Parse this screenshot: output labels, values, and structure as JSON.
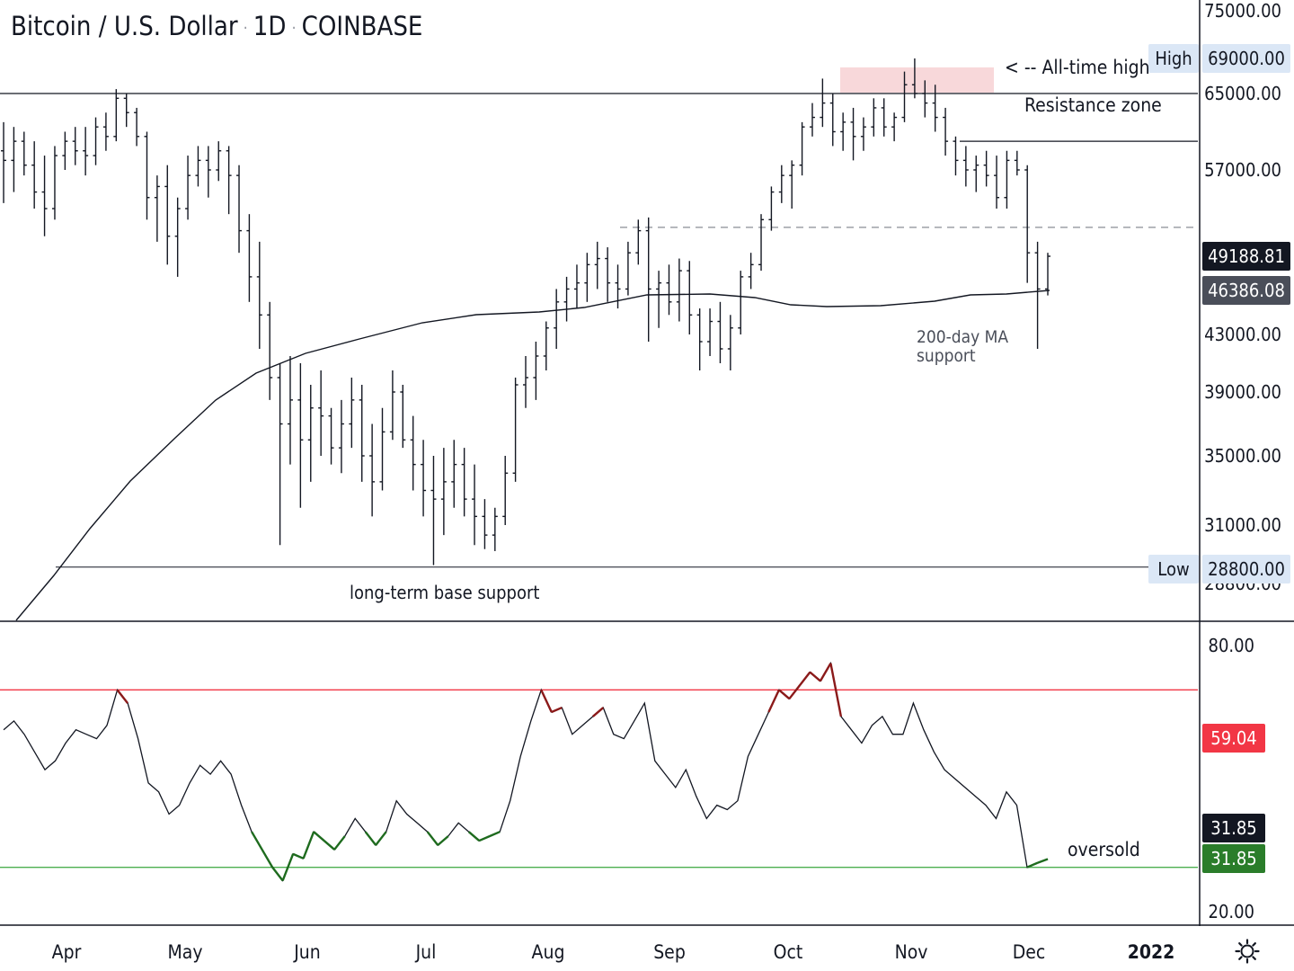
{
  "header": {
    "symbol": "Bitcoin / U.S. Dollar",
    "interval": "1D",
    "exchange": "COINBASE",
    "separator": "·"
  },
  "chart_data": [
    {
      "type": "ohlc-bar",
      "title": "Bitcoin / U.S. Dollar · 1D · COINBASE",
      "price_axis": {
        "ticks": [
          "75000.00",
          "65000.00",
          "57000.00",
          "43000.00",
          "39000.00",
          "35000.00",
          "31000.00"
        ],
        "partial_tick": "28800.00"
      },
      "time_axis": [
        "Apr",
        "May",
        "Jun",
        "Jul",
        "Aug",
        "Sep",
        "Oct",
        "Nov",
        "Dec",
        "2022"
      ],
      "price_labels": [
        {
          "label": "High",
          "value": "69000.00",
          "color": "#dbe7f6"
        },
        {
          "label": "",
          "value": "49188.81",
          "color": "#131722"
        },
        {
          "label": "",
          "value": "46386.08",
          "color": "#4a4e59"
        },
        {
          "label": "Low",
          "value": "28800.00",
          "color": "#dbe7f6"
        }
      ],
      "annotations": {
        "ath": "< -- All-time high",
        "resistance": "Resistance zone",
        "ma_support_line1": "200-day MA",
        "ma_support_line2": "support",
        "base_support": "long-term base support"
      },
      "horizontal_levels": [
        {
          "price": 65000,
          "style": "solid",
          "note": "resistance"
        },
        {
          "price": 60000,
          "style": "solid",
          "note": "short resistance"
        },
        {
          "price": 51800,
          "style": "dashed"
        },
        {
          "price": 28900,
          "style": "solid",
          "note": "base support"
        }
      ],
      "ohlc_approx": [
        [
          59000,
          62000,
          54000,
          58000
        ],
        [
          58000,
          61500,
          55000,
          60000
        ],
        [
          60000,
          61000,
          56500,
          57500
        ],
        [
          57500,
          60000,
          53500,
          55000
        ],
        [
          55000,
          58500,
          51000,
          53500
        ],
        [
          53500,
          59500,
          52500,
          58500
        ],
        [
          58500,
          61000,
          57000,
          60000
        ],
        [
          60000,
          61500,
          57500,
          59000
        ],
        [
          59000,
          61500,
          56500,
          58500
        ],
        [
          58500,
          62500,
          57500,
          61500
        ],
        [
          61500,
          63000,
          59000,
          60500
        ],
        [
          60500,
          65500,
          60000,
          64500
        ],
        [
          64500,
          65000,
          61500,
          63000
        ],
        [
          63000,
          63500,
          59500,
          60500
        ],
        [
          60500,
          61000,
          52500,
          54500
        ],
        [
          54500,
          56500,
          50500,
          55500
        ],
        [
          55500,
          57500,
          48500,
          51000
        ],
        [
          51000,
          54500,
          47500,
          53500
        ],
        [
          53500,
          58500,
          52500,
          56500
        ],
        [
          56500,
          59500,
          55500,
          58000
        ],
        [
          58000,
          59500,
          54500,
          57000
        ],
        [
          57000,
          60000,
          56000,
          59000
        ],
        [
          59000,
          59500,
          53000,
          56500
        ],
        [
          56500,
          57500,
          49500,
          51500
        ],
        [
          51500,
          53000,
          45500,
          47500
        ],
        [
          47500,
          50500,
          42000,
          44500
        ],
        [
          44500,
          45500,
          38500,
          40000
        ],
        [
          40000,
          41000,
          30000,
          37000
        ],
        [
          37000,
          41500,
          34500,
          38500
        ],
        [
          38500,
          41000,
          32000,
          36000
        ],
        [
          36000,
          39500,
          33500,
          38000
        ],
        [
          38000,
          40500,
          35000,
          37500
        ],
        [
          37500,
          38000,
          34500,
          35500
        ],
        [
          35500,
          38500,
          34000,
          37000
        ],
        [
          37000,
          40000,
          35500,
          38500
        ],
        [
          38500,
          39500,
          33500,
          35000
        ],
        [
          35000,
          37000,
          31500,
          33500
        ],
        [
          33500,
          38000,
          33000,
          36500
        ],
        [
          36500,
          40500,
          36000,
          39000
        ],
        [
          39000,
          39500,
          35500,
          36000
        ],
        [
          36000,
          37500,
          33000,
          34500
        ],
        [
          34500,
          36000,
          31500,
          33000
        ],
        [
          33000,
          35000,
          29000,
          32500
        ],
        [
          32500,
          35500,
          30500,
          33500
        ],
        [
          33500,
          36000,
          32000,
          34500
        ],
        [
          34500,
          35500,
          31500,
          32500
        ],
        [
          32500,
          34500,
          30000,
          31500
        ],
        [
          31500,
          32500,
          29800,
          30500
        ],
        [
          30500,
          32000,
          29700,
          31500
        ],
        [
          31500,
          35000,
          31000,
          34000
        ],
        [
          34000,
          40000,
          33500,
          39500
        ],
        [
          39500,
          41500,
          38000,
          40000
        ],
        [
          40000,
          42500,
          38500,
          41500
        ],
        [
          41500,
          44000,
          40500,
          43500
        ],
        [
          43500,
          46500,
          42000,
          45500
        ],
        [
          45500,
          47500,
          44000,
          46500
        ],
        [
          46500,
          48500,
          45000,
          47000
        ],
        [
          47000,
          49500,
          45500,
          48500
        ],
        [
          48500,
          50500,
          46500,
          49000
        ],
        [
          49000,
          50000,
          45500,
          47000
        ],
        [
          47000,
          48500,
          45000,
          46500
        ],
        [
          46500,
          50500,
          46000,
          49500
        ],
        [
          49500,
          52500,
          48500,
          51500
        ],
        [
          51500,
          52700,
          42500,
          46500
        ],
        [
          46500,
          48000,
          43500,
          47000
        ],
        [
          47000,
          48500,
          44500,
          45500
        ],
        [
          45500,
          49000,
          44000,
          48000
        ],
        [
          48000,
          48800,
          43000,
          44500
        ],
        [
          44500,
          45000,
          40500,
          42500
        ],
        [
          42500,
          45000,
          41500,
          44000
        ],
        [
          44000,
          45500,
          41000,
          42000
        ],
        [
          42000,
          44500,
          40500,
          43500
        ],
        [
          43500,
          48000,
          43000,
          47500
        ],
        [
          47500,
          49500,
          46500,
          48500
        ],
        [
          48500,
          53000,
          48000,
          52500
        ],
        [
          52500,
          55500,
          51500,
          55000
        ],
        [
          55000,
          57500,
          54000,
          56500
        ],
        [
          56500,
          58000,
          53500,
          57500
        ],
        [
          57500,
          62000,
          56500,
          61500
        ],
        [
          61500,
          64000,
          60500,
          62500
        ],
        [
          62500,
          66700,
          61500,
          64000
        ],
        [
          64000,
          65000,
          59500,
          61000
        ],
        [
          61000,
          63000,
          59000,
          62000
        ],
        [
          62000,
          63500,
          58000,
          60500
        ],
        [
          60500,
          62500,
          59000,
          61500
        ],
        [
          61500,
          64500,
          60500,
          63500
        ],
        [
          63500,
          64500,
          60500,
          61500
        ],
        [
          61500,
          63000,
          60000,
          62500
        ],
        [
          62500,
          67500,
          62000,
          66000
        ],
        [
          66000,
          69000,
          64500,
          65000
        ],
        [
          65000,
          66500,
          62500,
          64000
        ],
        [
          64000,
          66000,
          61000,
          62500
        ],
        [
          62500,
          63500,
          58500,
          60000
        ],
        [
          60000,
          60500,
          56500,
          58000
        ],
        [
          58000,
          59500,
          55500,
          57000
        ],
        [
          57000,
          58500,
          55000,
          57500
        ],
        [
          57500,
          59000,
          55500,
          56500
        ],
        [
          56500,
          58500,
          53500,
          54500
        ],
        [
          54500,
          59000,
          53500,
          58000
        ],
        [
          58000,
          59000,
          56500,
          57000
        ],
        [
          57000,
          57500,
          47000,
          49500
        ],
        [
          49500,
          50500,
          42000,
          46500
        ],
        [
          46500,
          49500,
          46000,
          49188
        ]
      ],
      "ma200": {
        "name": "200-day MA",
        "last_value": 46386.08
      }
    },
    {
      "type": "line",
      "indicator": "RSI",
      "y_axis": {
        "ticks": [
          "80.00",
          "20.00"
        ]
      },
      "values": [
        61,
        63,
        60,
        56,
        52,
        54,
        58,
        61,
        60,
        59,
        62,
        70,
        67,
        59,
        49,
        47,
        42,
        44,
        49,
        53,
        51,
        54,
        51,
        44,
        38,
        34,
        30,
        27,
        33,
        32,
        38,
        36,
        34,
        37,
        41,
        38,
        35,
        38,
        45,
        42,
        40,
        38,
        35,
        37,
        40,
        38,
        36,
        37,
        38,
        45,
        55,
        63,
        70,
        65,
        66,
        60,
        62,
        64,
        66,
        60,
        59,
        63,
        67,
        54,
        51,
        48,
        52,
        46,
        41,
        44,
        43,
        45,
        55,
        60,
        65,
        70,
        68,
        71,
        74,
        72,
        76,
        64,
        61,
        58,
        62,
        64,
        60,
        60,
        67,
        61,
        56,
        52,
        50,
        48,
        46,
        44,
        41,
        47,
        44,
        30,
        31,
        31.85
      ],
      "levels": [
        {
          "value": 70,
          "color": "#f23645",
          "note": "overbought"
        },
        {
          "value": 30,
          "color": "#4caf50",
          "note": "oversold"
        }
      ],
      "price_labels": [
        {
          "value": "59.04",
          "color": "#f23645"
        },
        {
          "value": "31.85",
          "color": "#131722"
        },
        {
          "value": "31.85",
          "color": "#2a7d2a"
        }
      ],
      "annotation": "oversold"
    }
  ]
}
